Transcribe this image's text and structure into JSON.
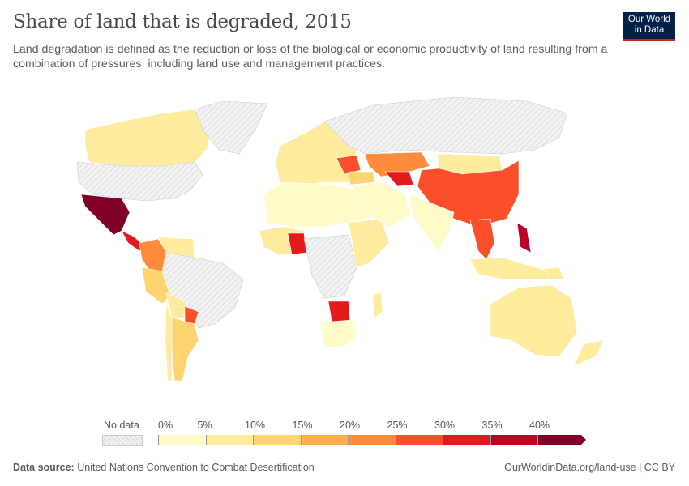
{
  "title": "Share of land that is degraded, 2015",
  "subtitle": "Land degradation is defined as the reduction or loss of the biological or economic productivity of land resulting from a combination of pressures, including land use and management practices.",
  "logo": {
    "line1": "Our World",
    "line2": "in Data"
  },
  "legend": {
    "no_data_label": "No data",
    "ticks": [
      "0%",
      "5%",
      "10%",
      "15%",
      "20%",
      "25%",
      "30%",
      "35%",
      "40%"
    ],
    "colors": [
      "#fffbc8",
      "#feeb9e",
      "#fed470",
      "#fdae4b",
      "#fc8c3c",
      "#fb4f2c",
      "#e31a1c",
      "#bd0026",
      "#800026"
    ],
    "no_data_color": "#ececec"
  },
  "regions": [
    {
      "name": "Canada",
      "bin": 1
    },
    {
      "name": "United States",
      "bin": -1
    },
    {
      "name": "Greenland",
      "bin": -1
    },
    {
      "name": "Mexico",
      "bin": 8
    },
    {
      "name": "Central America",
      "bin": 6
    },
    {
      "name": "Colombia",
      "bin": 4
    },
    {
      "name": "Venezuela",
      "bin": 1
    },
    {
      "name": "Brazil",
      "bin": -1
    },
    {
      "name": "Peru",
      "bin": 2
    },
    {
      "name": "Bolivia",
      "bin": 1
    },
    {
      "name": "Paraguay",
      "bin": 5
    },
    {
      "name": "Argentina",
      "bin": 2
    },
    {
      "name": "Chile",
      "bin": 1
    },
    {
      "name": "Europe",
      "bin": 1
    },
    {
      "name": "Ukraine",
      "bin": 5
    },
    {
      "name": "Russia",
      "bin": -1
    },
    {
      "name": "North Africa",
      "bin": 0
    },
    {
      "name": "West Africa",
      "bin": 1
    },
    {
      "name": "Nigeria",
      "bin": 6
    },
    {
      "name": "Central Africa",
      "bin": -1
    },
    {
      "name": "East Africa",
      "bin": 1
    },
    {
      "name": "Botswana",
      "bin": 6
    },
    {
      "name": "South Africa",
      "bin": 0
    },
    {
      "name": "Madagascar",
      "bin": 1
    },
    {
      "name": "Middle East",
      "bin": 0
    },
    {
      "name": "Turkey",
      "bin": 2
    },
    {
      "name": "Kazakhstan",
      "bin": 4
    },
    {
      "name": "Uzbekistan",
      "bin": 6
    },
    {
      "name": "Mongolia",
      "bin": 1
    },
    {
      "name": "China",
      "bin": 5
    },
    {
      "name": "India",
      "bin": 0
    },
    {
      "name": "Southeast Asia",
      "bin": 5
    },
    {
      "name": "Philippines",
      "bin": 7
    },
    {
      "name": "Indonesia",
      "bin": 1
    },
    {
      "name": "Papua New Guinea",
      "bin": 1
    },
    {
      "name": "Australia",
      "bin": 1
    },
    {
      "name": "New Zealand",
      "bin": 1
    }
  ],
  "footer": {
    "source_label": "Data source:",
    "source": "United Nations Convention to Combat Desertification",
    "url": "OurWorldinData.org/land-use | CC BY"
  }
}
